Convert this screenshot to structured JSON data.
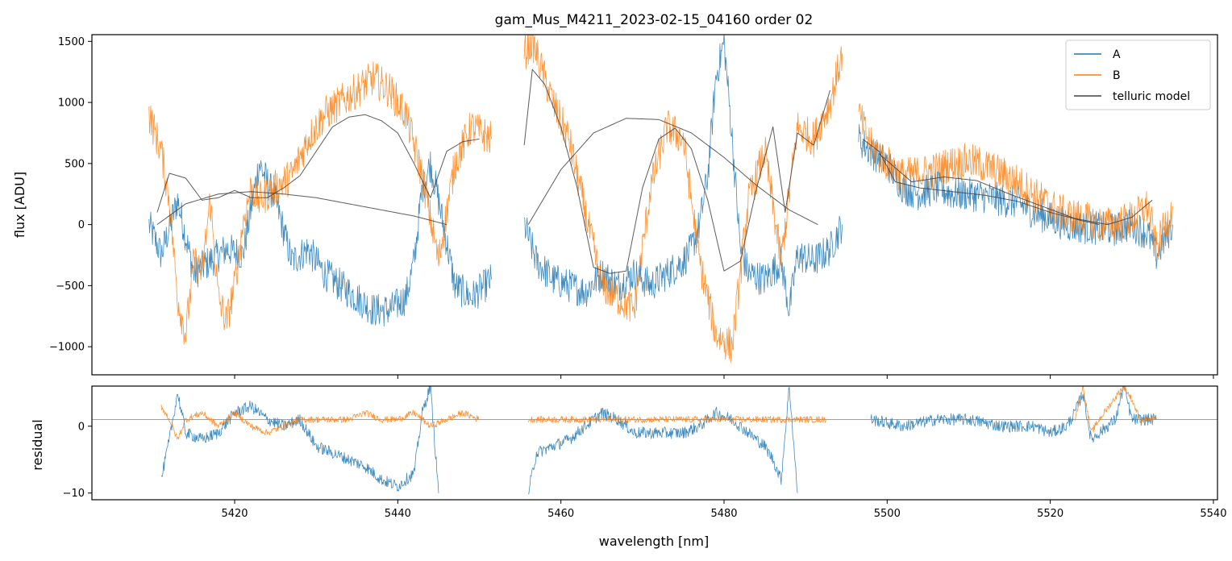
{
  "title": "gam_Mus_M4211_2023-02-15_04160  order 02",
  "colors": {
    "A": "#1f77b4",
    "B": "#ff7f0e",
    "model": "#404040",
    "zero": "#808080"
  },
  "chart_data": [
    {
      "type": "line",
      "panel": "top",
      "ylabel": "flux [ADU]",
      "xlim": [
        5402.5,
        5540.5
      ],
      "ylim": [
        -1230,
        1555
      ],
      "x_ticks": [
        5420,
        5440,
        5460,
        5480,
        5500,
        5520,
        5540
      ],
      "y_ticks": [
        -1000,
        -500,
        0,
        500,
        1000,
        1500
      ],
      "y_tick_labels": [
        "−1000",
        "−500",
        "0",
        "500",
        "1000",
        "1500"
      ],
      "legend": {
        "position": "top-right",
        "entries": [
          "A",
          "B",
          "telluric model"
        ]
      },
      "series": [
        {
          "name": "A",
          "segments": [
            {
              "x": [
                5409.5,
                5411,
                5413,
                5415,
                5417,
                5419,
                5421,
                5423,
                5425,
                5427,
                5429,
                5431,
                5433,
                5435,
                5437,
                5439,
                5441,
                5442,
                5443,
                5444,
                5445,
                5447,
                5449,
                5451.5
              ],
              "y": [
                0,
                -250,
                200,
                -400,
                -300,
                -200,
                -250,
                500,
                200,
                -300,
                -200,
                -400,
                -500,
                -600,
                -700,
                -700,
                -600,
                -300,
                300,
                500,
                200,
                -500,
                -600,
                -450
              ]
            },
            {
              "x": [
                5455.5,
                5457,
                5459,
                5461,
                5463,
                5465,
                5467,
                5469,
                5471,
                5473,
                5475,
                5476,
                5477,
                5478,
                5479,
                5480,
                5481,
                5482,
                5483,
                5485,
                5487,
                5488,
                5489,
                5491,
                5493,
                5494.5
              ],
              "y": [
                0,
                -300,
                -450,
                -500,
                -550,
                -400,
                -500,
                -400,
                -500,
                -400,
                -300,
                -200,
                0,
                400,
                1200,
                1500,
                700,
                -200,
                -400,
                -450,
                -300,
                -700,
                -250,
                -300,
                -200,
                0
              ]
            },
            {
              "x": [
                5496.5,
                5498,
                5500,
                5502,
                5504,
                5506,
                5508,
                5510,
                5512,
                5514,
                5516,
                5518,
                5520,
                5522,
                5524,
                5526,
                5528,
                5530,
                5532,
                5533,
                5535
              ],
              "y": [
                700,
                600,
                500,
                300,
                250,
                300,
                250,
                250,
                230,
                200,
                180,
                100,
                50,
                0,
                -20,
                -30,
                -40,
                0,
                -80,
                -250,
                0
              ]
            }
          ]
        },
        {
          "name": "B",
          "segments": [
            {
              "x": [
                5409.5,
                5411,
                5412,
                5413,
                5414,
                5415,
                5416,
                5417,
                5418,
                5419,
                5420,
                5421,
                5422,
                5423,
                5425,
                5427,
                5429,
                5431,
                5433,
                5435,
                5437,
                5439,
                5441,
                5443,
                5445,
                5447,
                5449,
                5451.5
              ],
              "y": [
                900,
                600,
                200,
                -600,
                -900,
                -300,
                -400,
                200,
                -600,
                -800,
                -500,
                0,
                300,
                200,
                300,
                400,
                700,
                900,
                1000,
                1100,
                1200,
                1100,
                900,
                400,
                -300,
                500,
                800,
                700
              ]
            },
            {
              "x": [
                5455.5,
                5456.5,
                5457.5,
                5459,
                5461,
                5463,
                5465,
                5467,
                5469,
                5471,
                5473,
                5475,
                5477,
                5479,
                5481,
                5483,
                5485,
                5487,
                5489,
                5491,
                5493,
                5494.5
              ],
              "y": [
                1400,
                1500,
                1300,
                1000,
                700,
                100,
                -500,
                -600,
                -700,
                300,
                800,
                700,
                -300,
                -900,
                -1000,
                200,
                600,
                -300,
                800,
                700,
                1000,
                1400
              ]
            },
            {
              "x": [
                5496.5,
                5498,
                5500,
                5502,
                5504,
                5506,
                5508,
                5510,
                5512,
                5514,
                5516,
                5518,
                5520,
                5522,
                5524,
                5526,
                5528,
                5530,
                5532,
                5533,
                5535
              ],
              "y": [
                900,
                650,
                500,
                400,
                420,
                450,
                500,
                520,
                480,
                420,
                350,
                250,
                150,
                80,
                50,
                0,
                0,
                50,
                150,
                -200,
                150
              ]
            }
          ]
        },
        {
          "name": "telluric model",
          "segments": [
            {
              "x": [
                5410.5,
                5412,
                5414,
                5416,
                5418,
                5420,
                5422,
                5424,
                5426,
                5428,
                5430,
                5432,
                5434,
                5436,
                5438,
                5440,
                5442,
                5444,
                5446,
                5448,
                5450
              ],
              "y": [
                100,
                420,
                380,
                200,
                220,
                280,
                220,
                220,
                300,
                400,
                600,
                800,
                880,
                900,
                850,
                750,
                500,
                220,
                600,
                680,
                700
              ]
            },
            {
              "x": [
                5410.5,
                5414,
                5418,
                5422,
                5426,
                5430,
                5434,
                5438,
                5442,
                5446
              ],
              "y": [
                0,
                170,
                250,
                270,
                250,
                220,
                170,
                120,
                70,
                0
              ]
            },
            {
              "x": [
                5455.5,
                5456.5,
                5458,
                5460,
                5462,
                5464,
                5466,
                5468,
                5470,
                5472,
                5474,
                5476,
                5478,
                5480,
                5482,
                5484,
                5486,
                5487.5,
                5489,
                5491,
                5493
              ],
              "y": [
                650,
                1270,
                1150,
                800,
                300,
                -350,
                -400,
                -380,
                300,
                700,
                790,
                620,
                200,
                -380,
                -300,
                300,
                800,
                100,
                750,
                650,
                1100
              ]
            },
            {
              "x": [
                5456,
                5460,
                5464,
                5468,
                5472,
                5476,
                5480,
                5484,
                5488,
                5491.5
              ],
              "y": [
                0,
                450,
                750,
                870,
                860,
                750,
                550,
                320,
                120,
                0
              ]
            },
            {
              "x": [
                5497,
                5499,
                5501,
                5504,
                5508,
                5512,
                5516,
                5520,
                5524,
                5526
              ],
              "y": [
                700,
                600,
                350,
                300,
                270,
                240,
                190,
                100,
                30,
                0
              ]
            },
            {
              "x": [
                5499,
                5503,
                5507,
                5511,
                5515,
                5519,
                5523,
                5527,
                5530,
                5532.5
              ],
              "y": [
                580,
                350,
                390,
                360,
                250,
                150,
                50,
                0,
                60,
                200
              ]
            }
          ]
        }
      ]
    },
    {
      "type": "line",
      "panel": "bottom",
      "xlabel": "wavelength [nm]",
      "ylabel": "residual",
      "xlim": [
        5402.5,
        5540.5
      ],
      "ylim": [
        -11,
        6
      ],
      "x_ticks": [
        5420,
        5440,
        5460,
        5480,
        5500,
        5520,
        5540
      ],
      "x_tick_labels": [
        "5420",
        "5440",
        "5460",
        "5480",
        "5500",
        "5520",
        "5540"
      ],
      "y_ticks": [
        -10,
        0
      ],
      "y_tick_labels": [
        "−10",
        "0"
      ],
      "reference_line_y": 1,
      "series": [
        {
          "name": "A",
          "segments": [
            {
              "x": [
                5411,
                5412,
                5413,
                5414,
                5416,
                5418,
                5420,
                5422,
                5424,
                5426,
                5428,
                5430,
                5432,
                5434,
                5436,
                5438,
                5440,
                5442,
                5443,
                5444,
                5445
              ],
              "y": [
                -8,
                -2,
                5,
                -1,
                -2,
                -1,
                2,
                3,
                1,
                0,
                1,
                -3,
                -4,
                -5,
                -6,
                -8,
                -9,
                -7,
                2,
                6,
                -10
              ]
            },
            {
              "x": [
                5456,
                5457,
                5459,
                5461,
                5463,
                5465,
                5467,
                5469,
                5471,
                5473,
                5475,
                5477,
                5479,
                5481,
                5483,
                5485,
                5486,
                5487,
                5488,
                5489
              ],
              "y": [
                -10,
                -4,
                -3,
                -2,
                0,
                2,
                1,
                -1,
                -1,
                -1,
                -1,
                0,
                2,
                1,
                -1,
                -3,
                -5,
                -8,
                6,
                -10
              ]
            },
            {
              "x": [
                5498,
                5502,
                5506,
                5510,
                5514,
                5518,
                5520,
                5522,
                5523,
                5524,
                5525,
                5528,
                5529,
                5530,
                5531,
                5533
              ],
              "y": [
                1,
                0,
                1,
                1,
                0,
                0,
                -1,
                0,
                2,
                5,
                -2,
                1,
                6,
                1,
                1,
                1
              ]
            }
          ]
        },
        {
          "name": "B",
          "segments": [
            {
              "x": [
                5411,
                5412,
                5413,
                5414,
                5416,
                5418,
                5420,
                5422,
                5424,
                5426,
                5428,
                5430,
                5432,
                5434,
                5436,
                5438,
                5440,
                5442,
                5444,
                5446,
                5448,
                5450
              ],
              "y": [
                3,
                1,
                -2,
                1,
                2,
                0,
                2,
                0,
                -1,
                0,
                1,
                1,
                1,
                1,
                2,
                1,
                1,
                2,
                0,
                1,
                2,
                1
              ]
            },
            {
              "x": [
                5456,
                5460,
                5464,
                5468,
                5472,
                5476,
                5480,
                5484,
                5488,
                5492.5
              ],
              "y": [
                1,
                1,
                1,
                1,
                1,
                1,
                1,
                1,
                1,
                1
              ]
            },
            {
              "x": [
                5523,
                5524,
                5525,
                5526,
                5529,
                5530,
                5531,
                5532,
                5533
              ],
              "y": [
                1,
                6,
                -1,
                1,
                6,
                4,
                1,
                1,
                1
              ]
            }
          ]
        }
      ]
    }
  ]
}
